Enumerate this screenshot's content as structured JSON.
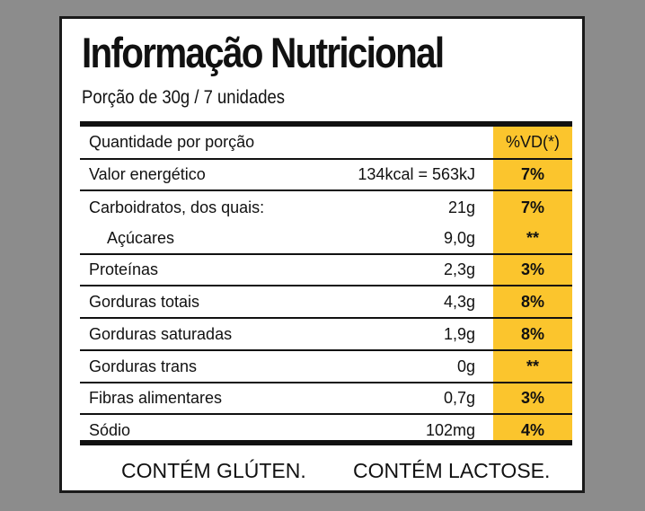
{
  "title": "Informação Nutricional",
  "portion": "Porção de 30g / 7 unidades",
  "header": {
    "label": "Quantidade por porção",
    "vd": "%VD(*)"
  },
  "rows": [
    {
      "name": "Valor energético",
      "qty": "134kcal = 563kJ",
      "vd": "7%"
    },
    {
      "name": "Carboidratos, dos quais:",
      "qty": "21g",
      "vd": "7%"
    },
    {
      "name": "Açúcares",
      "qty": "9,0g",
      "vd": "**"
    },
    {
      "name": "Proteínas",
      "qty": "2,3g",
      "vd": "3%"
    },
    {
      "name": "Gorduras totais",
      "qty": "4,3g",
      "vd": "8%"
    },
    {
      "name": "Gorduras saturadas",
      "qty": "1,9g",
      "vd": "8%"
    },
    {
      "name": "Gorduras trans",
      "qty": "0g",
      "vd": "**"
    },
    {
      "name": "Fibras alimentares",
      "qty": "0,7g",
      "vd": "3%"
    },
    {
      "name": "Sódio",
      "qty": "102mg",
      "vd": "4%"
    }
  ],
  "footer": {
    "gluten": "CONTÉM GLÚTEN.",
    "lactose": "CONTÉM LACTOSE."
  },
  "colors": {
    "background": "#8c8c8c",
    "highlight": "#fbc52d",
    "text": "#111111"
  }
}
